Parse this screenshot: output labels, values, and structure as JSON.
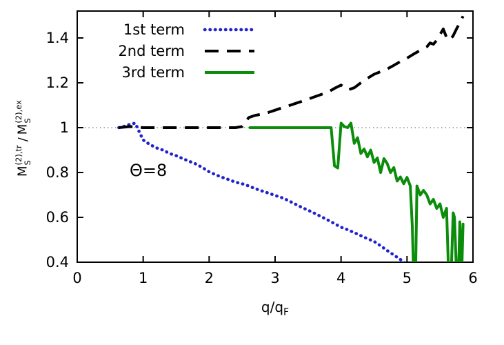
{
  "chart_data": {
    "type": "line",
    "title": "",
    "xlabel": "q/qF",
    "ylabel": "M_S^(2),tr / M_S^(2),ex",
    "xlim": [
      0,
      6
    ],
    "ylim": [
      0.4,
      1.52
    ],
    "xticks": [
      0,
      1,
      2,
      3,
      4,
      5,
      6
    ],
    "xtick_labels": [
      "0",
      "1",
      "2",
      "3",
      "4",
      "5",
      "6"
    ],
    "yticks": [
      0.4,
      0.6,
      0.8,
      1,
      1.2,
      1.4
    ],
    "ytick_labels": [
      "0.4",
      "0.6",
      "0.8",
      "1",
      "1.2",
      "1.4"
    ],
    "grid": false,
    "legend_position": "top-left",
    "reference_line": {
      "y": 1,
      "style": "dotted",
      "color": "#555555"
    },
    "annotation": "Θ=8",
    "labels": {
      "ylabel_base": "M",
      "ylabel_sub": "S",
      "ylabel_sup_tr": "(2),tr",
      "ylabel_sup_ex": "(2),ex",
      "ylabel_sep": "/",
      "xlabel_base": "q/q",
      "xlabel_sub": "F"
    },
    "series": [
      {
        "name": "1st term",
        "style": "dotted",
        "color": "#2222cc",
        "points": [
          [
            0.63,
            1.0
          ],
          [
            0.7,
            1.005
          ],
          [
            0.8,
            1.015
          ],
          [
            0.88,
            1.02
          ],
          [
            0.95,
            0.975
          ],
          [
            1.0,
            0.945
          ],
          [
            1.1,
            0.925
          ],
          [
            1.2,
            0.91
          ],
          [
            1.3,
            0.9
          ],
          [
            1.4,
            0.885
          ],
          [
            1.5,
            0.875
          ],
          [
            1.6,
            0.862
          ],
          [
            1.7,
            0.85
          ],
          [
            1.8,
            0.838
          ],
          [
            1.9,
            0.822
          ],
          [
            2.0,
            0.803
          ],
          [
            2.1,
            0.79
          ],
          [
            2.2,
            0.778
          ],
          [
            2.3,
            0.768
          ],
          [
            2.4,
            0.757
          ],
          [
            2.5,
            0.75
          ],
          [
            2.6,
            0.74
          ],
          [
            2.7,
            0.728
          ],
          [
            2.8,
            0.718
          ],
          [
            2.9,
            0.708
          ],
          [
            3.0,
            0.698
          ],
          [
            3.1,
            0.688
          ],
          [
            3.2,
            0.675
          ],
          [
            3.3,
            0.66
          ],
          [
            3.4,
            0.645
          ],
          [
            3.5,
            0.632
          ],
          [
            3.6,
            0.618
          ],
          [
            3.7,
            0.603
          ],
          [
            3.8,
            0.588
          ],
          [
            3.9,
            0.572
          ],
          [
            4.0,
            0.556
          ],
          [
            4.1,
            0.545
          ],
          [
            4.2,
            0.532
          ],
          [
            4.3,
            0.518
          ],
          [
            4.4,
            0.505
          ],
          [
            4.5,
            0.493
          ],
          [
            4.6,
            0.473
          ],
          [
            4.7,
            0.452
          ],
          [
            4.8,
            0.432
          ],
          [
            4.9,
            0.412
          ],
          [
            5.0,
            0.39
          ]
        ]
      },
      {
        "name": "2nd term",
        "style": "dashed",
        "color": "#000000",
        "points": [
          [
            0.63,
            1.0
          ],
          [
            0.8,
            1.005
          ],
          [
            1.0,
            1.0
          ],
          [
            1.2,
            1.0
          ],
          [
            1.4,
            1.0
          ],
          [
            1.6,
            1.0
          ],
          [
            1.8,
            1.0
          ],
          [
            2.0,
            1.0
          ],
          [
            2.2,
            1.0
          ],
          [
            2.4,
            1.0
          ],
          [
            2.5,
            1.005
          ],
          [
            2.6,
            1.045
          ],
          [
            2.7,
            1.055
          ],
          [
            2.8,
            1.06
          ],
          [
            2.9,
            1.068
          ],
          [
            3.0,
            1.078
          ],
          [
            3.1,
            1.088
          ],
          [
            3.2,
            1.097
          ],
          [
            3.3,
            1.107
          ],
          [
            3.4,
            1.117
          ],
          [
            3.5,
            1.127
          ],
          [
            3.6,
            1.138
          ],
          [
            3.7,
            1.148
          ],
          [
            3.8,
            1.158
          ],
          [
            3.9,
            1.175
          ],
          [
            4.0,
            1.19
          ],
          [
            4.1,
            1.168
          ],
          [
            4.2,
            1.178
          ],
          [
            4.3,
            1.2
          ],
          [
            4.4,
            1.22
          ],
          [
            4.5,
            1.238
          ],
          [
            4.6,
            1.25
          ],
          [
            4.7,
            1.262
          ],
          [
            4.8,
            1.278
          ],
          [
            4.9,
            1.295
          ],
          [
            5.0,
            1.31
          ],
          [
            5.1,
            1.328
          ],
          [
            5.2,
            1.345
          ],
          [
            5.3,
            1.36
          ],
          [
            5.35,
            1.378
          ],
          [
            5.4,
            1.372
          ],
          [
            5.45,
            1.39
          ],
          [
            5.5,
            1.415
          ],
          [
            5.55,
            1.44
          ],
          [
            5.6,
            1.402
          ],
          [
            5.65,
            1.39
          ],
          [
            5.7,
            1.41
          ],
          [
            5.75,
            1.44
          ],
          [
            5.8,
            1.468
          ],
          [
            5.85,
            1.497
          ]
        ]
      },
      {
        "name": "3rd term",
        "style": "solid",
        "color": "#0b8c0b",
        "points": [
          [
            2.62,
            1.0
          ],
          [
            2.8,
            1.0
          ],
          [
            3.0,
            1.0
          ],
          [
            3.2,
            1.0
          ],
          [
            3.4,
            1.0
          ],
          [
            3.6,
            1.0
          ],
          [
            3.8,
            1.0
          ],
          [
            3.85,
            1.0
          ],
          [
            3.9,
            0.83
          ],
          [
            3.95,
            0.82
          ],
          [
            4.0,
            1.02
          ],
          [
            4.05,
            1.005
          ],
          [
            4.1,
            1.0
          ],
          [
            4.15,
            1.02
          ],
          [
            4.2,
            0.93
          ],
          [
            4.25,
            0.955
          ],
          [
            4.3,
            0.885
          ],
          [
            4.35,
            0.905
          ],
          [
            4.4,
            0.87
          ],
          [
            4.45,
            0.9
          ],
          [
            4.5,
            0.845
          ],
          [
            4.55,
            0.865
          ],
          [
            4.6,
            0.8
          ],
          [
            4.65,
            0.862
          ],
          [
            4.7,
            0.84
          ],
          [
            4.75,
            0.8
          ],
          [
            4.8,
            0.822
          ],
          [
            4.85,
            0.762
          ],
          [
            4.9,
            0.78
          ],
          [
            4.95,
            0.75
          ],
          [
            5.0,
            0.778
          ],
          [
            5.05,
            0.74
          ],
          [
            5.08,
            0.56
          ],
          [
            5.1,
            0.35
          ],
          [
            5.13,
            0.35
          ],
          [
            5.15,
            0.74
          ],
          [
            5.2,
            0.7
          ],
          [
            5.25,
            0.72
          ],
          [
            5.3,
            0.7
          ],
          [
            5.35,
            0.66
          ],
          [
            5.4,
            0.68
          ],
          [
            5.45,
            0.64
          ],
          [
            5.5,
            0.66
          ],
          [
            5.55,
            0.6
          ],
          [
            5.6,
            0.64
          ],
          [
            5.63,
            0.35
          ],
          [
            5.67,
            0.35
          ],
          [
            5.7,
            0.62
          ],
          [
            5.72,
            0.6
          ],
          [
            5.75,
            0.35
          ],
          [
            5.78,
            0.35
          ],
          [
            5.8,
            0.58
          ],
          [
            5.83,
            0.35
          ],
          [
            5.85,
            0.57
          ]
        ]
      }
    ]
  }
}
